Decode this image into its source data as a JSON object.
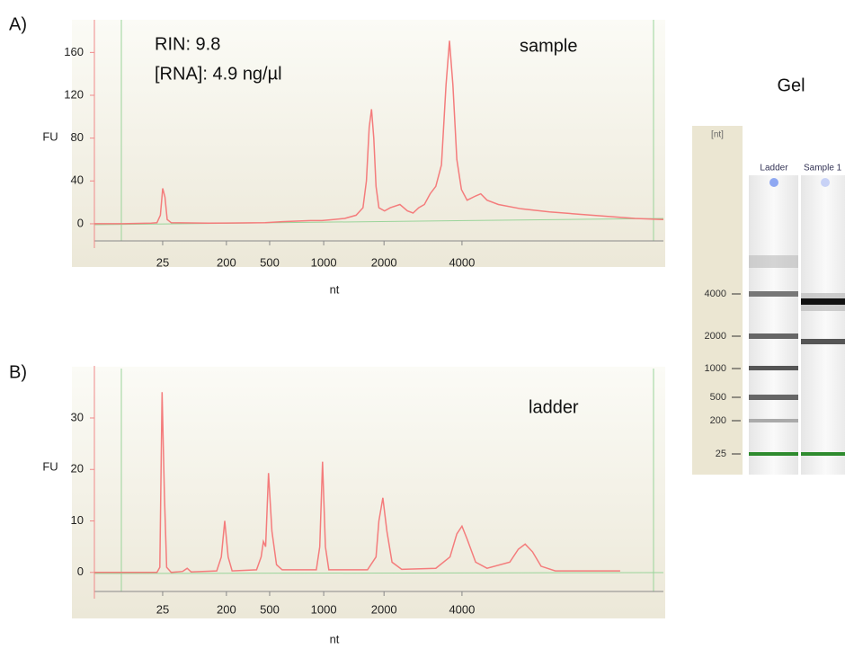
{
  "chart_data": [
    {
      "type": "line",
      "panel_label": "A)",
      "annotations": [
        "RIN: 9.8",
        "[RNA]: 4.9 ng/µl",
        "sample"
      ],
      "ylabel": "FU",
      "xlabel": "nt",
      "color": "#f47c7c",
      "x": [
        0,
        5,
        10,
        11,
        11.6,
        12,
        12.4,
        12.8,
        13.5,
        20,
        30,
        33,
        38,
        40,
        42,
        44,
        46,
        47.2,
        47.8,
        48.3,
        48.7,
        49.1,
        49.5,
        50,
        51,
        52,
        53.7,
        55,
        56,
        57,
        58,
        59,
        60,
        61,
        61.8,
        62.4,
        63,
        63.7,
        64.5,
        65.5,
        67,
        67.9,
        69,
        71,
        75,
        80,
        85,
        90,
        95,
        100
      ],
      "values": [
        0,
        0,
        0.5,
        1,
        8,
        33,
        25,
        4,
        1,
        0.5,
        1,
        2,
        3,
        3,
        4,
        5,
        8,
        15,
        40,
        90,
        107,
        80,
        35,
        15,
        12,
        15,
        18,
        12,
        10,
        15,
        18,
        28,
        35,
        55,
        130,
        171,
        130,
        60,
        32,
        22,
        26,
        28,
        22,
        18,
        14,
        11,
        9,
        7,
        5,
        4
      ],
      "xlim": [
        0,
        100
      ],
      "ylim": [
        -16,
        188
      ],
      "xticks": [
        {
          "value": 12,
          "label": "25"
        },
        {
          "value": 23.2,
          "label": "200"
        },
        {
          "value": 30.8,
          "label": "500"
        },
        {
          "value": 40.3,
          "label": "1000"
        },
        {
          "value": 50.9,
          "label": "2000"
        },
        {
          "value": 64.6,
          "label": "4000"
        }
      ],
      "yticks": [
        0,
        40,
        80,
        120,
        160
      ]
    },
    {
      "type": "line",
      "panel_label": "B)",
      "annotations": [
        "ladder"
      ],
      "ylabel": "FU",
      "xlabel": "nt",
      "color": "#f47c7c",
      "x": [
        0,
        11,
        11.5,
        11.9,
        12.3,
        12.7,
        13.5,
        15.5,
        16.3,
        17,
        21.5,
        22.3,
        22.9,
        23.5,
        24.2,
        28.5,
        29.3,
        29.7,
        30.1,
        30.6,
        31.2,
        32,
        33,
        39,
        39.6,
        40.1,
        40.6,
        41.2,
        48,
        49.5,
        50,
        50.7,
        51.4,
        52.3,
        54,
        60,
        62.5,
        63.7,
        64.6,
        65.5,
        67,
        69,
        73,
        74.5,
        75.7,
        77,
        78.5,
        81,
        92.4
      ],
      "values": [
        0,
        0,
        1,
        35,
        15,
        1,
        0,
        0.2,
        0.8,
        0.1,
        0.3,
        3,
        10,
        3,
        0.3,
        0.5,
        3,
        6,
        5,
        19.3,
        8,
        1.5,
        0.5,
        0.5,
        5,
        21.5,
        5,
        0.5,
        0.5,
        3,
        10,
        14.5,
        8,
        2,
        0.6,
        0.8,
        3,
        7.5,
        9,
        6.5,
        2,
        0.8,
        2,
        4.5,
        5.5,
        4,
        1.2,
        0.3,
        0.3
      ],
      "xlim": [
        0,
        100
      ],
      "ylim": [
        -3.7,
        39.6
      ],
      "xticks": [
        {
          "value": 12,
          "label": "25"
        },
        {
          "value": 23.2,
          "label": "200"
        },
        {
          "value": 30.8,
          "label": "500"
        },
        {
          "value": 40.3,
          "label": "1000"
        },
        {
          "value": 50.9,
          "label": "2000"
        },
        {
          "value": 64.6,
          "label": "4000"
        }
      ],
      "yticks": [
        0,
        10,
        20,
        30
      ]
    }
  ],
  "gel": {
    "title": "Gel",
    "axis_label": "[nt]",
    "lanes": [
      "Ladder",
      "Sample 1"
    ],
    "ticks": [
      "4000",
      "2000",
      "1000",
      "500",
      "200",
      "25"
    ]
  }
}
